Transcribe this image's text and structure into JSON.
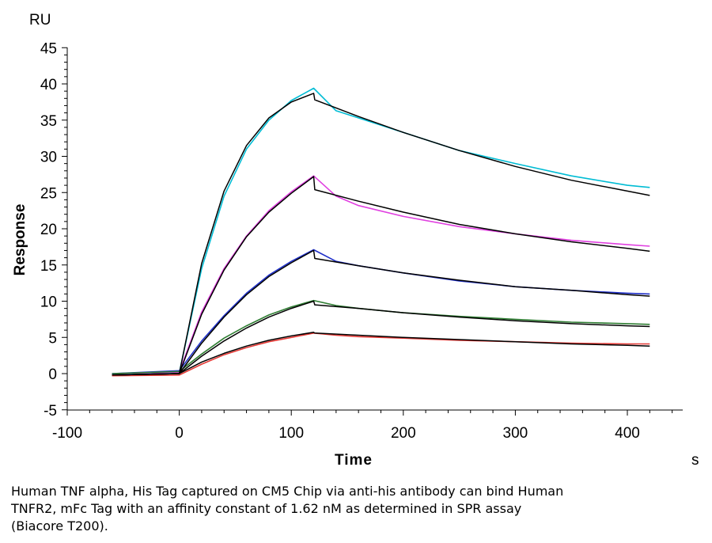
{
  "chart_data": {
    "type": "line",
    "y_unit": "RU",
    "x_unit": "s",
    "xlabel": "Time",
    "ylabel": "Response",
    "xlim": [
      -100,
      450
    ],
    "ylim": [
      -5,
      45
    ],
    "x_ticks": [
      -100,
      0,
      100,
      200,
      300,
      400
    ],
    "y_ticks": [
      -5,
      0,
      5,
      10,
      15,
      20,
      25,
      30,
      35,
      40,
      45
    ],
    "injection_end": 120,
    "series": [
      {
        "color": "#00bcd4",
        "fit_color": "#000000",
        "points": [
          [
            -60,
            0
          ],
          [
            0,
            0.1
          ],
          [
            20,
            14.5
          ],
          [
            40,
            24.5
          ],
          [
            60,
            31
          ],
          [
            80,
            35
          ],
          [
            100,
            37.7
          ],
          [
            120,
            39.4
          ],
          [
            140,
            36.3
          ],
          [
            160,
            35.3
          ],
          [
            200,
            33.3
          ],
          [
            250,
            30.8
          ],
          [
            300,
            29
          ],
          [
            350,
            27.3
          ],
          [
            400,
            26
          ],
          [
            420,
            25.7
          ]
        ],
        "fit_points": [
          [
            -60,
            -0.2
          ],
          [
            0,
            0
          ],
          [
            20,
            15.2
          ],
          [
            40,
            25.2
          ],
          [
            60,
            31.5
          ],
          [
            80,
            35.3
          ],
          [
            100,
            37.5
          ],
          [
            120,
            38.7
          ],
          [
            121,
            37.8
          ],
          [
            160,
            35.5
          ],
          [
            200,
            33.3
          ],
          [
            250,
            30.8
          ],
          [
            300,
            28.6
          ],
          [
            350,
            26.7
          ],
          [
            400,
            25.2
          ],
          [
            420,
            24.6
          ]
        ]
      },
      {
        "color": "#e040e0",
        "fit_color": "#000000",
        "points": [
          [
            -60,
            0
          ],
          [
            0,
            0.2
          ],
          [
            20,
            8.5
          ],
          [
            40,
            14.5
          ],
          [
            60,
            19
          ],
          [
            80,
            22.5
          ],
          [
            100,
            25.1
          ],
          [
            120,
            27.3
          ],
          [
            140,
            24.5
          ],
          [
            160,
            23.2
          ],
          [
            200,
            21.7
          ],
          [
            250,
            20.3
          ],
          [
            300,
            19.3
          ],
          [
            350,
            18.4
          ],
          [
            400,
            17.8
          ],
          [
            420,
            17.6
          ]
        ],
        "fit_points": [
          [
            -60,
            -0.2
          ],
          [
            0,
            0
          ],
          [
            20,
            8.2
          ],
          [
            40,
            14.3
          ],
          [
            60,
            18.9
          ],
          [
            80,
            22.3
          ],
          [
            100,
            24.9
          ],
          [
            120,
            27.2
          ],
          [
            121,
            25.4
          ],
          [
            160,
            23.8
          ],
          [
            200,
            22.3
          ],
          [
            250,
            20.6
          ],
          [
            300,
            19.3
          ],
          [
            350,
            18.2
          ],
          [
            400,
            17.3
          ],
          [
            420,
            16.9
          ]
        ]
      },
      {
        "color": "#2030c8",
        "fit_color": "#000000",
        "points": [
          [
            -60,
            0
          ],
          [
            0,
            0.4
          ],
          [
            20,
            4.5
          ],
          [
            40,
            8
          ],
          [
            60,
            11.1
          ],
          [
            80,
            13.6
          ],
          [
            100,
            15.5
          ],
          [
            120,
            17.1
          ],
          [
            140,
            15.5
          ],
          [
            160,
            14.9
          ],
          [
            200,
            13.9
          ],
          [
            250,
            12.8
          ],
          [
            300,
            12
          ],
          [
            350,
            11.5
          ],
          [
            400,
            11.1
          ],
          [
            420,
            11
          ]
        ],
        "fit_points": [
          [
            -60,
            -0.2
          ],
          [
            0,
            0
          ],
          [
            20,
            4.2
          ],
          [
            40,
            7.8
          ],
          [
            60,
            10.9
          ],
          [
            80,
            13.4
          ],
          [
            100,
            15.3
          ],
          [
            120,
            17
          ],
          [
            121,
            15.9
          ],
          [
            160,
            14.9
          ],
          [
            200,
            13.9
          ],
          [
            250,
            12.9
          ],
          [
            300,
            12
          ],
          [
            350,
            11.5
          ],
          [
            400,
            10.9
          ],
          [
            420,
            10.7
          ]
        ]
      },
      {
        "color": "#2e7d32",
        "fit_color": "#000000",
        "points": [
          [
            -60,
            0
          ],
          [
            0,
            0.3
          ],
          [
            20,
            2.7
          ],
          [
            40,
            4.9
          ],
          [
            60,
            6.6
          ],
          [
            80,
            8.1
          ],
          [
            100,
            9.2
          ],
          [
            120,
            10.1
          ],
          [
            140,
            9.4
          ],
          [
            160,
            9
          ],
          [
            200,
            8.4
          ],
          [
            250,
            7.9
          ],
          [
            300,
            7.5
          ],
          [
            350,
            7.1
          ],
          [
            400,
            6.9
          ],
          [
            420,
            6.8
          ]
        ],
        "fit_points": [
          [
            -60,
            -0.2
          ],
          [
            0,
            0
          ],
          [
            20,
            2.4
          ],
          [
            40,
            4.5
          ],
          [
            60,
            6.3
          ],
          [
            80,
            7.8
          ],
          [
            100,
            9
          ],
          [
            120,
            10
          ],
          [
            121,
            9.5
          ],
          [
            160,
            9
          ],
          [
            200,
            8.4
          ],
          [
            250,
            7.8
          ],
          [
            300,
            7.3
          ],
          [
            350,
            6.9
          ],
          [
            400,
            6.6
          ],
          [
            420,
            6.5
          ]
        ]
      },
      {
        "color": "#e53935",
        "fit_color": "#000000",
        "points": [
          [
            -60,
            -0.3
          ],
          [
            0,
            -0.2
          ],
          [
            20,
            1.3
          ],
          [
            40,
            2.6
          ],
          [
            60,
            3.6
          ],
          [
            80,
            4.4
          ],
          [
            100,
            5
          ],
          [
            120,
            5.6
          ],
          [
            140,
            5.3
          ],
          [
            160,
            5.1
          ],
          [
            200,
            4.9
          ],
          [
            250,
            4.6
          ],
          [
            300,
            4.4
          ],
          [
            350,
            4.2
          ],
          [
            400,
            4.1
          ],
          [
            420,
            4.1
          ]
        ],
        "fit_points": [
          [
            -60,
            -0.2
          ],
          [
            0,
            0
          ],
          [
            20,
            1.6
          ],
          [
            40,
            2.8
          ],
          [
            60,
            3.8
          ],
          [
            80,
            4.6
          ],
          [
            100,
            5.2
          ],
          [
            120,
            5.7
          ],
          [
            121,
            5.6
          ],
          [
            160,
            5.3
          ],
          [
            200,
            5
          ],
          [
            250,
            4.7
          ],
          [
            300,
            4.4
          ],
          [
            350,
            4.1
          ],
          [
            400,
            3.9
          ],
          [
            420,
            3.8
          ]
        ]
      }
    ]
  },
  "caption": {
    "line1": "Human TNF alpha, His Tag captured on CM5 Chip via anti-his antibody can bind Human",
    "line2": "TNFR2, mFc Tag with an affinity constant of 1.62 nM as determined in SPR assay",
    "line3": "(Biacore T200)."
  }
}
